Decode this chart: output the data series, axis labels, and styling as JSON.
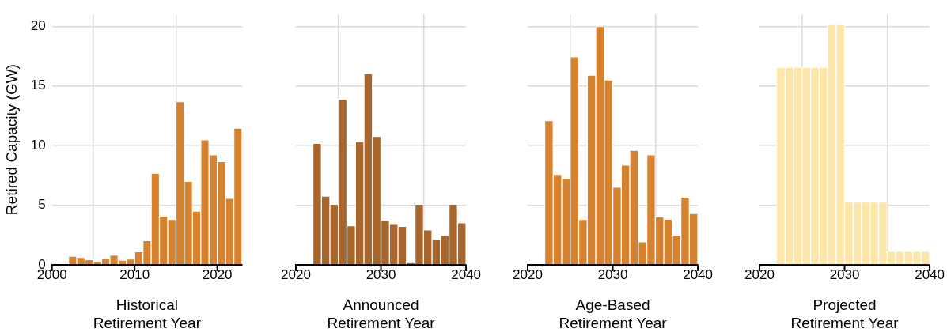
{
  "chart_data": [
    {
      "type": "histogram",
      "xlabel": "Historical\nRetirement Year",
      "ylabel": "Retired Capacity (GW)",
      "color": "#d6822f",
      "bins": [
        2000,
        2001,
        2002,
        2003,
        2004,
        2005,
        2006,
        2007,
        2008,
        2009,
        2010,
        2011,
        2012,
        2013,
        2014,
        2015,
        2016,
        2017,
        2018,
        2019,
        2020,
        2021,
        2022,
        2023
      ],
      "values": [
        null,
        null,
        0.72,
        0.63,
        0.44,
        0.26,
        0.51,
        0.82,
        0.4,
        0.49,
        1.1,
        2.03,
        7.69,
        4.09,
        3.81,
        13.69,
        7.0,
        4.5,
        10.49,
        9.23,
        8.67,
        5.58,
        11.47
      ],
      "xlim": [
        2000,
        2023
      ],
      "xticks": [
        2000,
        2010,
        2020
      ],
      "ylim": [
        0,
        21
      ],
      "yticks": [
        0,
        5,
        10,
        15,
        20
      ],
      "grid": true
    },
    {
      "type": "histogram",
      "xlabel": "Announced\nRetirement Year",
      "color": "#a8662c",
      "bins": [
        2022,
        2023,
        2024,
        2025,
        2026,
        2027,
        2028,
        2029,
        2030,
        2031,
        2032,
        2033,
        2034,
        2035,
        2036,
        2037,
        2038,
        2039,
        2040
      ],
      "values": [
        10.19,
        5.77,
        5.09,
        13.88,
        3.27,
        10.33,
        16.05,
        10.77,
        3.76,
        3.46,
        3.22,
        0.19,
        5.09,
        2.92,
        2.13,
        2.48,
        5.09,
        3.53
      ],
      "xlim": [
        2020,
        2040
      ],
      "xticks": [
        2020,
        2030,
        2040
      ],
      "ylim": [
        0,
        21
      ],
      "yticks": [
        0,
        5,
        10,
        15,
        20
      ],
      "grid": true,
      "tick_labels": "x"
    },
    {
      "type": "histogram",
      "xlabel": "Age-Based\nRetirement Year",
      "color": "#d6822f",
      "bins": [
        2022,
        2023,
        2024,
        2025,
        2026,
        2027,
        2028,
        2029,
        2030,
        2031,
        2032,
        2033,
        2034,
        2035,
        2036,
        2037,
        2038,
        2039,
        2040
      ],
      "values": [
        12.1,
        7.59,
        7.27,
        17.45,
        3.81,
        15.91,
        19.98,
        15.51,
        6.5,
        8.36,
        9.6,
        1.94,
        9.23,
        4.04,
        3.83,
        2.5,
        5.68,
        4.3
      ],
      "xlim": [
        2020,
        2040
      ],
      "xticks": [
        2020,
        2030,
        2040
      ],
      "ylim": [
        0,
        21
      ],
      "yticks": [
        0,
        5,
        10,
        15,
        20
      ],
      "grid": true,
      "tick_labels": "x"
    },
    {
      "type": "histogram",
      "xlabel": "Projected\nRetirement Year",
      "color": "#fde6aa",
      "bins": [
        2022,
        2023,
        2024,
        2025,
        2026,
        2027,
        2028,
        2029,
        2030,
        2031,
        2032,
        2033,
        2034,
        2035,
        2036,
        2037,
        2038,
        2039,
        2040
      ],
      "values": [
        16.57,
        16.57,
        16.57,
        16.57,
        16.57,
        16.57,
        20.14,
        20.14,
        5.26,
        5.26,
        5.26,
        5.26,
        5.26,
        1.14,
        1.14,
        1.14,
        1.14,
        1.14
      ],
      "xlim": [
        2020,
        2040
      ],
      "xticks": [
        2020,
        2030,
        2040
      ],
      "ylim": [
        0,
        21
      ],
      "yticks": [
        0,
        5,
        10,
        15,
        20
      ],
      "grid": true,
      "tick_labels": "x"
    }
  ]
}
